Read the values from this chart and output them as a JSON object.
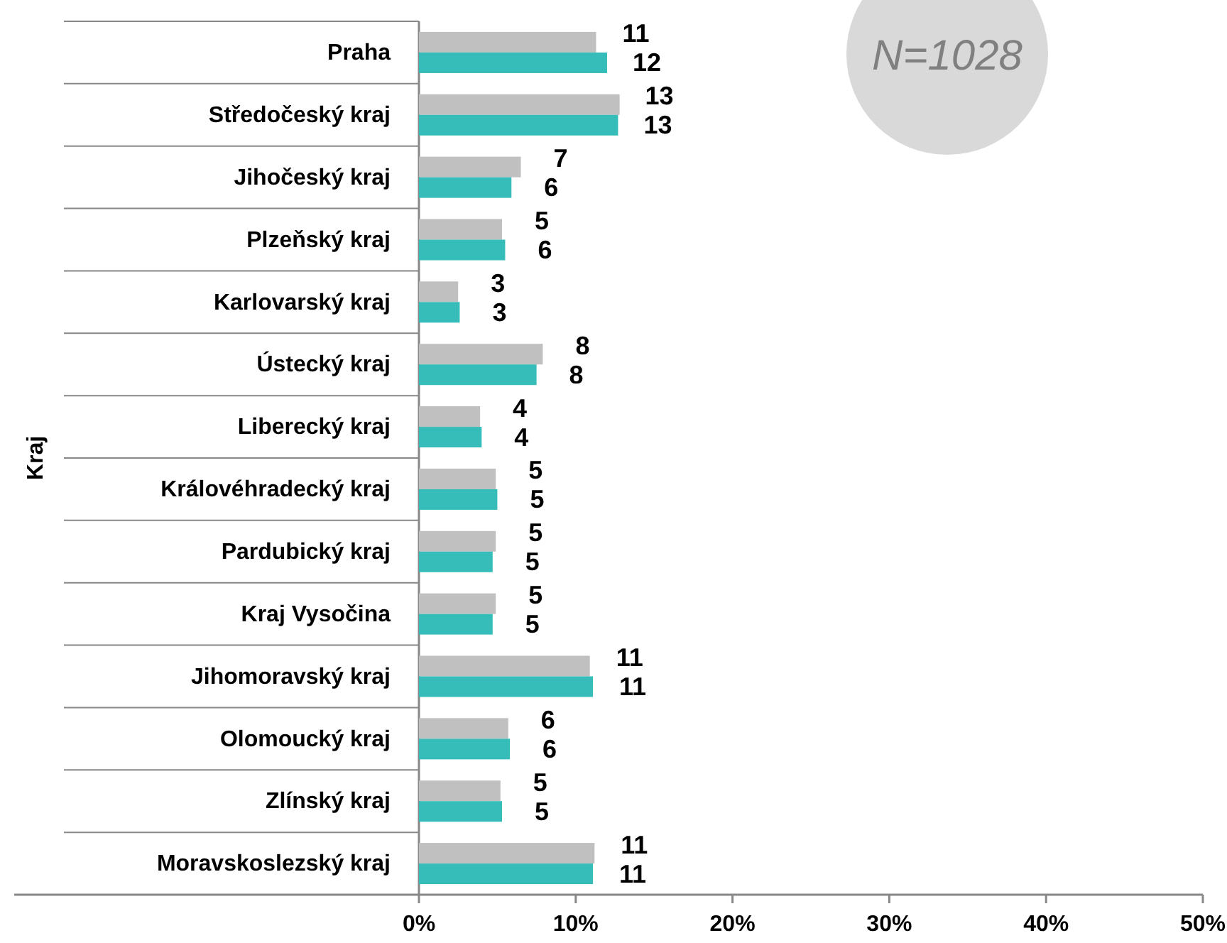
{
  "chart_data": {
    "type": "bar",
    "orientation": "horizontal",
    "ylabel": "Kraj",
    "categories": [
      "Praha",
      "Středočeský kraj",
      "Jihočeský kraj",
      "Plzeňský kraj",
      "Karlovarský kraj",
      "Ústecký kraj",
      "Liberecký kraj",
      "Královéhradecký kraj",
      "Pardubický kraj",
      "Kraj Vysočina",
      "Jihomoravský kraj",
      "Olomoucký kraj",
      "Zlínský kraj",
      "Moravskoslezský kraj"
    ],
    "series": [
      {
        "color": "#c0c0c0",
        "values": [
          11.3,
          12.8,
          6.5,
          5.3,
          2.5,
          7.9,
          3.9,
          4.9,
          4.9,
          4.9,
          10.9,
          5.7,
          5.2,
          11.2
        ],
        "value_labels": [
          "11",
          "13",
          "7",
          "5",
          "3",
          "8",
          "4",
          "5",
          "5",
          "5",
          "11",
          "6",
          "5",
          "11"
        ]
      },
      {
        "color": "#36bdb9",
        "values": [
          12.0,
          12.7,
          5.9,
          5.5,
          2.6,
          7.5,
          4.0,
          5.0,
          4.7,
          4.7,
          11.1,
          5.8,
          5.3,
          11.1
        ],
        "value_labels": [
          "12",
          "13",
          "6",
          "6",
          "3",
          "8",
          "4",
          "5",
          "5",
          "5",
          "11",
          "6",
          "5",
          "11"
        ]
      }
    ],
    "xlim": [
      0,
      50
    ],
    "xticks": [
      {
        "value": 0,
        "label": "0%"
      },
      {
        "value": 10,
        "label": "10%"
      },
      {
        "value": 20,
        "label": "20%"
      },
      {
        "value": 30,
        "label": "30%"
      },
      {
        "value": 40,
        "label": "40%"
      },
      {
        "value": 50,
        "label": "50%"
      }
    ],
    "annotations": [
      "N=1028"
    ],
    "grid": false
  }
}
